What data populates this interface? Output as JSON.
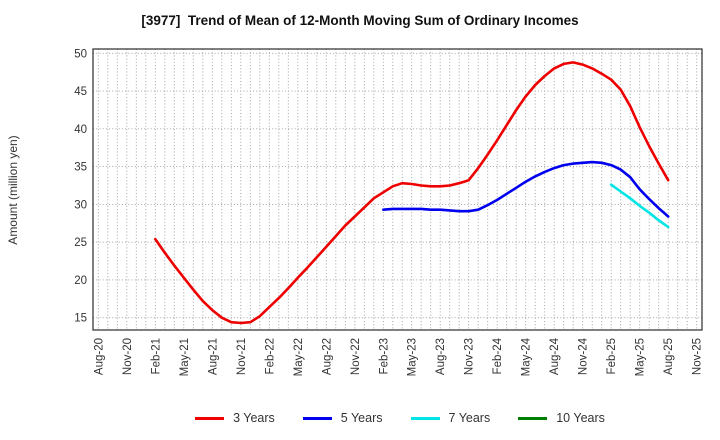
{
  "header": {
    "title": "[3977]  Trend of Mean of 12-Month Moving Sum of Ordinary Incomes"
  },
  "y_axis": {
    "label": "Amount (million yen)",
    "ticks": [
      50,
      45,
      40,
      35,
      30,
      25,
      20,
      15
    ]
  },
  "x_axis": {
    "tick_labels": [
      "Aug-20",
      "Nov-20",
      "Feb-21",
      "May-21",
      "Aug-21",
      "Nov-21",
      "Feb-22",
      "May-22",
      "Aug-22",
      "Nov-22",
      "Feb-23",
      "May-23",
      "Aug-23",
      "Nov-23",
      "Feb-24",
      "May-24",
      "Aug-24",
      "Nov-24",
      "Feb-25",
      "May-25",
      "Aug-25",
      "Nov-25"
    ],
    "months_per_tick": 3,
    "total_months": 63
  },
  "legend": [
    {
      "label": "3 Years",
      "color": "#ee0000"
    },
    {
      "label": "5 Years",
      "color": "#0000ee"
    },
    {
      "label": "7 Years",
      "color": "#00e5e5"
    },
    {
      "label": "10 Years",
      "color": "#008000"
    }
  ],
  "chart_data": {
    "type": "line",
    "title": "[3977]  Trend of Mean of 12-Month Moving Sum of Ordinary Incomes",
    "xlabel": "",
    "ylabel": "Amount (million yen)",
    "ylim": [
      13.4,
      50.6
    ],
    "y_ticks": [
      15,
      20,
      25,
      30,
      35,
      40,
      45,
      50
    ],
    "grid": "dotted, monthly vertical + 5-unit horizontal",
    "legend_position": "bottom",
    "x_tick_labels": [
      "Aug-20",
      "Nov-20",
      "Feb-21",
      "May-21",
      "Aug-21",
      "Nov-21",
      "Feb-22",
      "May-22",
      "Aug-22",
      "Nov-22",
      "Feb-23",
      "May-23",
      "Aug-23",
      "Nov-23",
      "Feb-24",
      "May-24",
      "Aug-24",
      "Nov-24",
      "Feb-25",
      "May-25",
      "Aug-25",
      "Nov-25"
    ],
    "series": [
      {
        "name": "3 Years",
        "color": "#ee0000",
        "start_month": "Feb-21",
        "end_month": "Aug-25",
        "start_offset_months": 6,
        "months": [
          "Feb-21",
          "Mar-21",
          "Apr-21",
          "May-21",
          "Jun-21",
          "Jul-21",
          "Aug-21",
          "Sep-21",
          "Oct-21",
          "Nov-21",
          "Dec-21",
          "Jan-22",
          "Feb-22",
          "Mar-22",
          "Apr-22",
          "May-22",
          "Jun-22",
          "Jul-22",
          "Aug-22",
          "Sep-22",
          "Oct-22",
          "Nov-22",
          "Dec-22",
          "Jan-23",
          "Feb-23",
          "Mar-23",
          "Apr-23",
          "May-23",
          "Jun-23",
          "Jul-23",
          "Aug-23",
          "Sep-23",
          "Oct-23",
          "Nov-23",
          "Dec-23",
          "Jan-24",
          "Feb-24",
          "Mar-24",
          "Apr-24",
          "May-24",
          "Jun-24",
          "Jul-24",
          "Aug-24",
          "Sep-24",
          "Oct-24",
          "Nov-24",
          "Dec-24",
          "Jan-25",
          "Feb-25",
          "Mar-25",
          "Apr-25",
          "May-25",
          "Jun-25",
          "Jul-25",
          "Aug-25"
        ],
        "values": [
          25.4,
          23.6,
          21.9,
          20.3,
          18.7,
          17.2,
          16.0,
          15.0,
          14.4,
          14.3,
          14.4,
          15.2,
          16.4,
          17.6,
          18.9,
          20.3,
          21.6,
          23.0,
          24.4,
          25.8,
          27.2,
          28.4,
          29.6,
          30.8,
          31.6,
          32.4,
          32.8,
          32.7,
          32.5,
          32.4,
          32.4,
          32.5,
          32.8,
          33.2,
          34.8,
          36.6,
          38.5,
          40.5,
          42.5,
          44.3,
          45.8,
          47.0,
          48.0,
          48.6,
          48.8,
          48.5,
          48.0,
          47.3,
          46.5,
          45.2,
          43.0,
          40.2,
          37.7,
          35.4,
          33.2
        ]
      },
      {
        "name": "5 Years",
        "color": "#0000ee",
        "start_month": "Feb-23",
        "end_month": "Aug-25",
        "start_offset_months": 30,
        "months": [
          "Feb-23",
          "Mar-23",
          "Apr-23",
          "May-23",
          "Jun-23",
          "Jul-23",
          "Aug-23",
          "Sep-23",
          "Oct-23",
          "Nov-23",
          "Dec-23",
          "Jan-24",
          "Feb-24",
          "Mar-24",
          "Apr-24",
          "May-24",
          "Jun-24",
          "Jul-24",
          "Aug-24",
          "Sep-24",
          "Oct-24",
          "Nov-24",
          "Dec-24",
          "Jan-25",
          "Feb-25",
          "Mar-25",
          "Apr-25",
          "May-25",
          "Jun-25",
          "Jul-25",
          "Aug-25"
        ],
        "values": [
          29.3,
          29.4,
          29.4,
          29.4,
          29.4,
          29.3,
          29.3,
          29.2,
          29.1,
          29.1,
          29.3,
          29.9,
          30.6,
          31.4,
          32.2,
          33.0,
          33.7,
          34.3,
          34.8,
          35.2,
          35.4,
          35.5,
          35.6,
          35.5,
          35.2,
          34.6,
          33.6,
          32.0,
          30.7,
          29.5,
          28.4
        ]
      },
      {
        "name": "7 Years",
        "color": "#00e5e5",
        "start_month": "Feb-25",
        "end_month": "Aug-25",
        "start_offset_months": 54,
        "months": [
          "Feb-25",
          "Mar-25",
          "Apr-25",
          "May-25",
          "Jun-25",
          "Jul-25",
          "Aug-25"
        ],
        "values": [
          32.6,
          31.7,
          30.8,
          29.8,
          28.9,
          27.9,
          27.0
        ]
      },
      {
        "name": "10 Years",
        "color": "#008000",
        "start_month": null,
        "end_month": null,
        "start_offset_months": 0,
        "months": [],
        "values": []
      }
    ]
  }
}
